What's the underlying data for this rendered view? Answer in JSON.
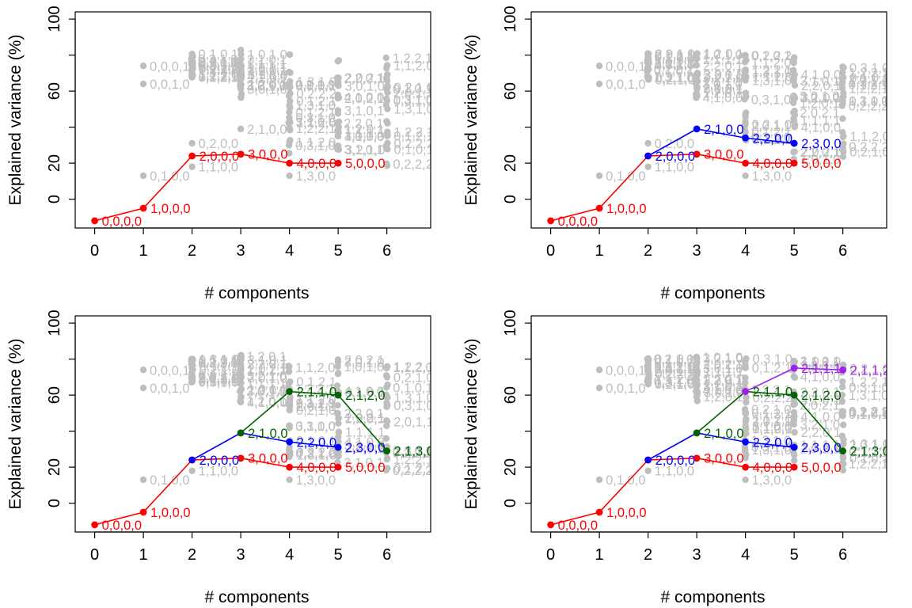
{
  "colors": {
    "background_points": "#bebebe",
    "path_1": "#ff0000",
    "path_2": "#0000ff",
    "path_3": "#006400",
    "path_4": "#a020f0",
    "frame": "#000000"
  },
  "chart_data": [
    {
      "type": "line",
      "panel": "top-left",
      "xlabel": "# components",
      "ylabel": "Explained variance (%)",
      "xlim": [
        -0.4,
        6.9
      ],
      "ylim": [
        -16,
        104
      ],
      "x_ticks": [
        "0",
        "1",
        "2",
        "3",
        "4",
        "5",
        "6"
      ],
      "y_ticks": [
        "0",
        "20",
        "60",
        "100"
      ],
      "background_points": {
        "labeled": [
          {
            "x": 1,
            "y": 74,
            "label": "0,0,0,1"
          },
          {
            "x": 1,
            "y": 64,
            "label": "0,0,1,0"
          },
          {
            "x": 1,
            "y": 13,
            "label": "0,1,0,0"
          },
          {
            "x": 2,
            "y": 31,
            "label": "0,2,0,0"
          },
          {
            "x": 2,
            "y": 18,
            "label": "1,1,0,0"
          },
          {
            "x": 3,
            "y": 39,
            "label": "2,1,0,0"
          },
          {
            "x": 4,
            "y": 13,
            "label": "1,3,0,0"
          },
          {
            "x": 4,
            "y": 43,
            "label": "3,1,0,0"
          }
        ],
        "clusters": [
          {
            "x": 2,
            "ymin": 66,
            "ymax": 81
          },
          {
            "x": 3,
            "ymin": 56,
            "ymax": 83
          },
          {
            "x": 4,
            "ymin": 25,
            "ymax": 82
          },
          {
            "x": 5,
            "ymin": 22,
            "ymax": 81
          },
          {
            "x": 6,
            "ymin": 17,
            "ymax": 80
          },
          {
            "x": 7,
            "ymin": 17,
            "ymax": 80
          }
        ]
      },
      "series": [
        {
          "color": "#ff0000",
          "x": [
            0,
            1,
            2,
            3,
            4,
            5
          ],
          "y": [
            -12,
            -5,
            24,
            25,
            20,
            20
          ],
          "labels": [
            "0,0,0,0",
            "1,0,0,0",
            "2,0,0,0",
            "3,0,0,0",
            "4,0,0,0",
            "5,0,0,0"
          ]
        }
      ]
    },
    {
      "type": "line",
      "panel": "top-right",
      "xlabel": "# components",
      "ylabel": "Explained variance (%)",
      "xlim": [
        -0.4,
        6.9
      ],
      "ylim": [
        -16,
        104
      ],
      "x_ticks": [
        "0",
        "1",
        "2",
        "3",
        "4",
        "5",
        "6"
      ],
      "y_ticks": [
        "0",
        "20",
        "60",
        "100"
      ],
      "background_points": {
        "labeled": [
          {
            "x": 1,
            "y": 74,
            "label": "0,0,0,1"
          },
          {
            "x": 1,
            "y": 64,
            "label": "0,0,1,0"
          },
          {
            "x": 1,
            "y": 13,
            "label": "0,1,0,0"
          },
          {
            "x": 2,
            "y": 31,
            "label": "0,2,0,0"
          },
          {
            "x": 2,
            "y": 18,
            "label": "1,1,0,0"
          },
          {
            "x": 4,
            "y": 13,
            "label": "1,3,0,0"
          }
        ],
        "clusters": [
          {
            "x": 2,
            "ymin": 66,
            "ymax": 81
          },
          {
            "x": 3,
            "ymin": 56,
            "ymax": 83
          },
          {
            "x": 4,
            "ymin": 25,
            "ymax": 82
          },
          {
            "x": 5,
            "ymin": 22,
            "ymax": 81
          },
          {
            "x": 6,
            "ymin": 17,
            "ymax": 80
          },
          {
            "x": 7,
            "ymin": 17,
            "ymax": 80
          }
        ]
      },
      "series": [
        {
          "color": "#ff0000",
          "x": [
            0,
            1,
            2,
            3,
            4,
            5
          ],
          "y": [
            -12,
            -5,
            24,
            25,
            20,
            20
          ],
          "labels": [
            "0,0,0,0",
            "1,0,0,0",
            "",
            "3,0,0,0",
            "4,0,0,0",
            "5,0,0,0"
          ]
        },
        {
          "color": "#0000ff",
          "x": [
            2,
            3,
            4,
            5
          ],
          "y": [
            24,
            39,
            34,
            31
          ],
          "labels": [
            "2,0,0,0",
            "2,1,0,0",
            "2,2,0,0",
            "2,3,0,0"
          ]
        }
      ]
    },
    {
      "type": "line",
      "panel": "bottom-left",
      "xlabel": "# components",
      "ylabel": "Explained variance (%)",
      "xlim": [
        -0.4,
        6.9
      ],
      "ylim": [
        -16,
        104
      ],
      "x_ticks": [
        "0",
        "1",
        "2",
        "3",
        "4",
        "5",
        "6"
      ],
      "y_ticks": [
        "0",
        "20",
        "60",
        "100"
      ],
      "background_points": {
        "labeled": [
          {
            "x": 1,
            "y": 74,
            "label": "0,0,0,1"
          },
          {
            "x": 1,
            "y": 64,
            "label": "0,0,1,0"
          },
          {
            "x": 1,
            "y": 13,
            "label": "0,1,0,0"
          },
          {
            "x": 2,
            "y": 18,
            "label": "1,1,0,0"
          },
          {
            "x": 4,
            "y": 13,
            "label": "1,3,0,0"
          },
          {
            "x": 4,
            "y": 43,
            "label": "3,1,0,0"
          }
        ],
        "clusters": [
          {
            "x": 2,
            "ymin": 66,
            "ymax": 81
          },
          {
            "x": 3,
            "ymin": 56,
            "ymax": 83
          },
          {
            "x": 4,
            "ymin": 25,
            "ymax": 82
          },
          {
            "x": 5,
            "ymin": 22,
            "ymax": 81
          },
          {
            "x": 6,
            "ymin": 17,
            "ymax": 80
          },
          {
            "x": 7,
            "ymin": 17,
            "ymax": 80
          }
        ]
      },
      "series": [
        {
          "color": "#ff0000",
          "x": [
            0,
            1,
            2,
            3,
            4,
            5
          ],
          "y": [
            -12,
            -5,
            24,
            25,
            20,
            20
          ],
          "labels": [
            "0,0,0,0",
            "1,0,0,0",
            "",
            "3,0,0,0",
            "4,0,0,0",
            "5,0,0,0"
          ]
        },
        {
          "color": "#0000ff",
          "x": [
            2,
            3,
            4,
            5
          ],
          "y": [
            24,
            39,
            34,
            31
          ],
          "labels": [
            "2,0,0,0",
            "",
            "2,2,0,0",
            "2,3,0,0"
          ]
        },
        {
          "color": "#006400",
          "x": [
            3,
            4,
            5,
            6
          ],
          "y": [
            39,
            62,
            60,
            29
          ],
          "labels": [
            "2,1,0,0",
            "2,1,1,0",
            "2,1,2,0",
            "2,1,3,0"
          ]
        }
      ]
    },
    {
      "type": "line",
      "panel": "bottom-right",
      "xlabel": "# components",
      "ylabel": "Explained variance (%)",
      "xlim": [
        -0.4,
        6.9
      ],
      "ylim": [
        -16,
        104
      ],
      "x_ticks": [
        "0",
        "1",
        "2",
        "3",
        "4",
        "5",
        "6"
      ],
      "y_ticks": [
        "0",
        "20",
        "60",
        "100"
      ],
      "background_points": {
        "labeled": [
          {
            "x": 1,
            "y": 74,
            "label": "0,0,0,1"
          },
          {
            "x": 1,
            "y": 64,
            "label": "0,0,1,0"
          },
          {
            "x": 1,
            "y": 13,
            "label": "0,1,0,0"
          },
          {
            "x": 2,
            "y": 18,
            "label": "1,1,0,0"
          },
          {
            "x": 4,
            "y": 13,
            "label": "1,3,0,0"
          },
          {
            "x": 4,
            "y": 43,
            "label": "3,1,0,0"
          }
        ],
        "clusters": [
          {
            "x": 2,
            "ymin": 66,
            "ymax": 81
          },
          {
            "x": 3,
            "ymin": 56,
            "ymax": 83
          },
          {
            "x": 4,
            "ymin": 25,
            "ymax": 82
          },
          {
            "x": 5,
            "ymin": 22,
            "ymax": 81
          },
          {
            "x": 6,
            "ymin": 17,
            "ymax": 80
          },
          {
            "x": 7,
            "ymin": 17,
            "ymax": 80
          }
        ]
      },
      "series": [
        {
          "color": "#ff0000",
          "x": [
            0,
            1,
            2,
            3,
            4,
            5
          ],
          "y": [
            -12,
            -5,
            24,
            25,
            20,
            20
          ],
          "labels": [
            "0,0,0,0",
            "1,0,0,0",
            "",
            "3,0,0,0",
            "4,0,0,0",
            "5,0,0,0"
          ]
        },
        {
          "color": "#0000ff",
          "x": [
            2,
            3,
            4,
            5
          ],
          "y": [
            24,
            39,
            34,
            31
          ],
          "labels": [
            "2,0,0,0",
            "",
            "2,2,0,0",
            "2,3,0,0"
          ]
        },
        {
          "color": "#006400",
          "x": [
            3,
            4,
            5,
            6
          ],
          "y": [
            39,
            62,
            60,
            29
          ],
          "labels": [
            "2,1,0,0",
            "2,1,1,0",
            "2,1,2,0",
            "2,1,3,0"
          ]
        },
        {
          "color": "#a020f0",
          "x": [
            4,
            5,
            6
          ],
          "y": [
            62,
            75,
            74
          ],
          "labels": [
            "",
            "2,1,1,1",
            "2,1,1,2"
          ]
        }
      ]
    }
  ]
}
